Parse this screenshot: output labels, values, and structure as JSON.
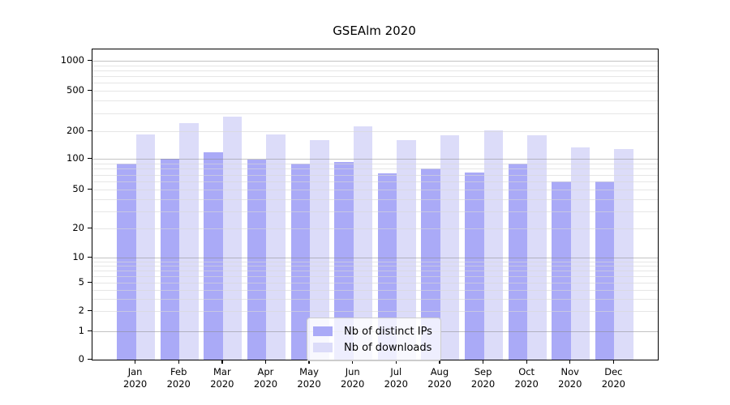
{
  "chart_data": {
    "type": "bar",
    "title": "GSEAlm 2020",
    "categories": [
      "Jan",
      "Feb",
      "Mar",
      "Apr",
      "May",
      "Jun",
      "Jul",
      "Aug",
      "Sep",
      "Oct",
      "Nov",
      "Dec"
    ],
    "category_year": "2020",
    "series": [
      {
        "name": "Nb of distinct IPs",
        "color": "#aaaaf7",
        "values": [
          90,
          100,
          118,
          98,
          90,
          93,
          72,
          81,
          74,
          89,
          60,
          60
        ]
      },
      {
        "name": "Nb of downloads",
        "color": "#dcdcf9",
        "values": [
          185,
          240,
          278,
          183,
          159,
          222,
          161,
          180,
          205,
          181,
          133,
          127
        ]
      }
    ],
    "y_ticks": [
      0,
      1,
      2,
      5,
      10,
      20,
      50,
      100,
      200,
      500,
      1000
    ],
    "y_minor_gridlines": [
      2,
      3,
      4,
      5,
      6,
      7,
      8,
      9,
      20,
      30,
      40,
      50,
      60,
      70,
      80,
      90,
      200,
      300,
      400,
      500,
      600,
      700,
      800,
      900
    ],
    "y_major_gridlines": [
      1,
      10,
      100,
      1000
    ],
    "y_scale": "symlog",
    "ylim": [
      0,
      1000
    ],
    "grid": "on",
    "legend_position": "inside-bottom-center"
  }
}
